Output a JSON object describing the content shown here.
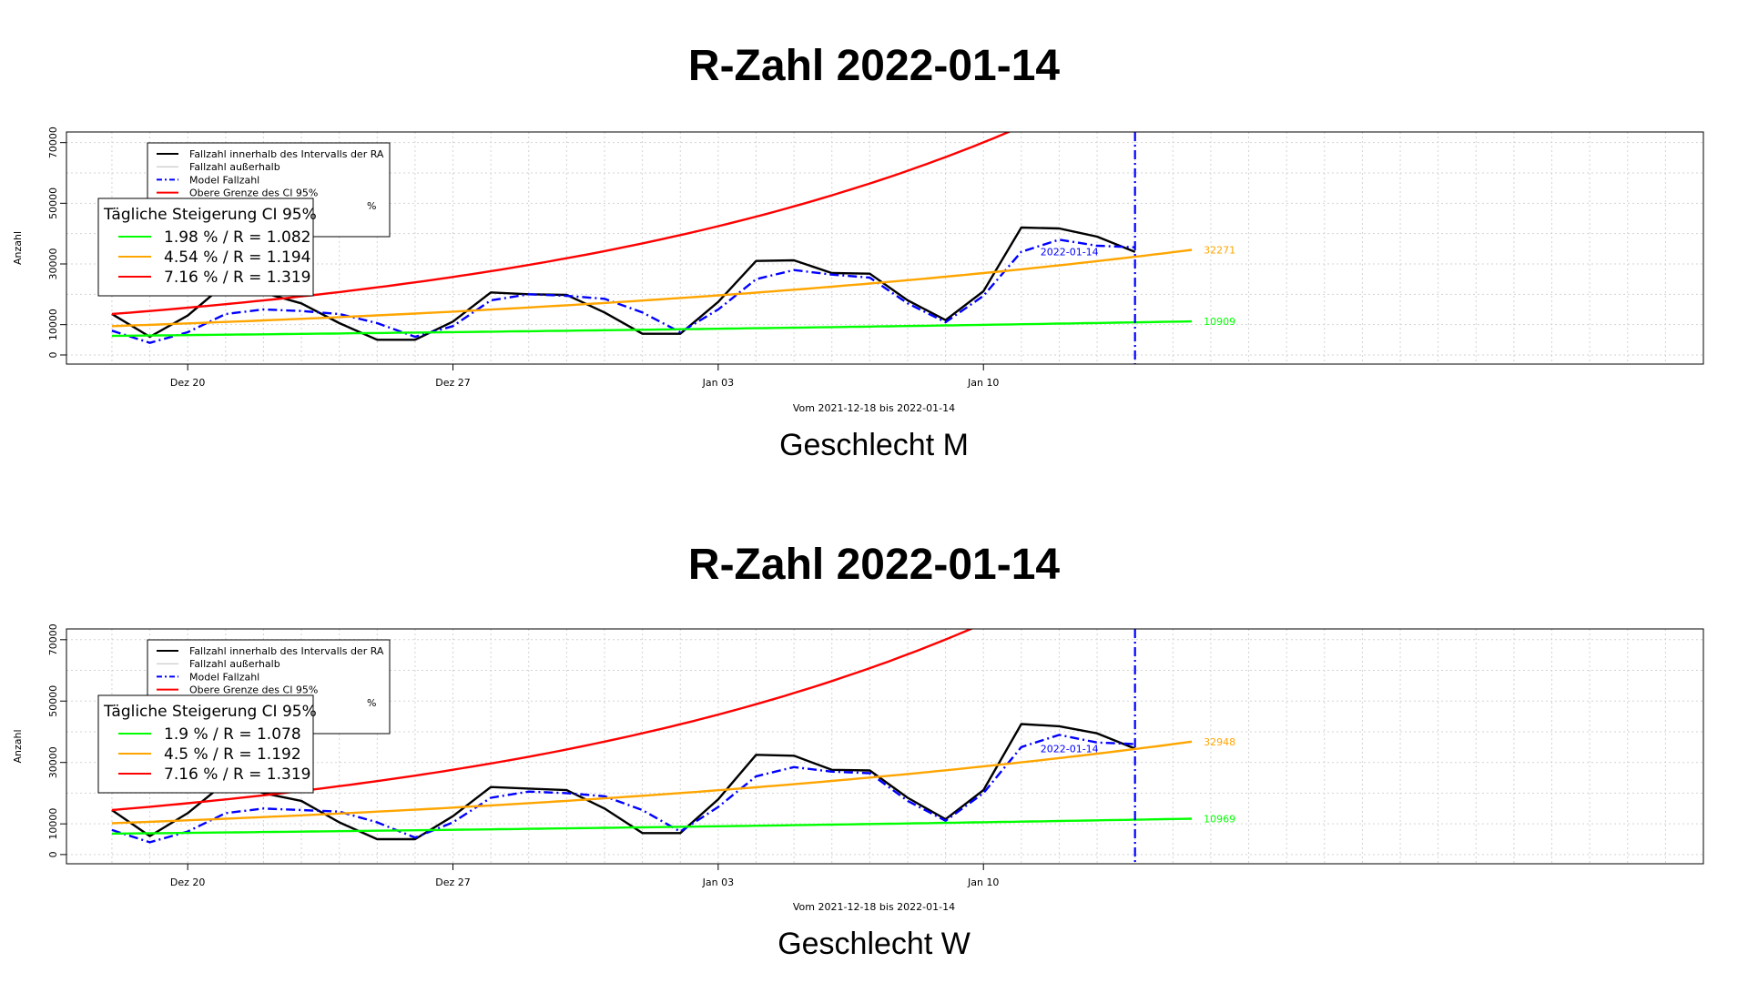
{
  "colors": {
    "black": "#000000",
    "gray": "#bebebe",
    "blue": "#0000ff",
    "red": "#ff0000",
    "orange": "#ffa500",
    "green": "#00ff00",
    "grid": "#d3d3d3"
  },
  "chart_data": [
    {
      "type": "line",
      "title": "R-Zahl 2022-01-14",
      "subtitle": "Geschlecht M",
      "xlabel": "Vom 2021-12-18 bis 2022-01-14",
      "ylabel": "Anzahl",
      "xlim": [
        -3.2,
        40.0
      ],
      "ylim": [
        -3000,
        73500
      ],
      "x_ticks": [
        0,
        7,
        14,
        21
      ],
      "x_tick_labels": [
        "Dez 20",
        "Dez 27",
        "Jan 03",
        "Jan 10"
      ],
      "y_ticks": [
        0,
        10000,
        30000,
        50000,
        70000
      ],
      "y_tick_labels": [
        "0",
        "10000",
        "30000",
        "50000",
        "70000"
      ],
      "y_grid": [
        0,
        10000,
        20000,
        30000,
        40000,
        50000,
        60000,
        70000
      ],
      "grid": true,
      "vline": {
        "x": 25,
        "label": "2022-01-14"
      },
      "series": [
        {
          "name": "Fallzahl innerhalb des Intervalls der RA",
          "style": "solid",
          "color": "black",
          "x": [
            -2,
            -1,
            0,
            1,
            2,
            3,
            4,
            5,
            6,
            7,
            8,
            9,
            10,
            11,
            12,
            13,
            14,
            15,
            16,
            17,
            18,
            19,
            20,
            21,
            22,
            23,
            24,
            25
          ],
          "values": [
            13500,
            6000,
            13000,
            23500,
            20500,
            17000,
            10500,
            5000,
            5000,
            11000,
            20600,
            20000,
            19800,
            14000,
            7000,
            7000,
            17500,
            31000,
            31200,
            27000,
            26800,
            18000,
            11500,
            21000,
            42000,
            41700,
            39000,
            34000
          ]
        },
        {
          "name": "Model Fallzahl",
          "style": "dashdot",
          "color": "blue",
          "x": [
            -2,
            -1,
            0,
            1,
            2,
            3,
            4,
            5,
            6,
            7,
            8,
            9,
            10,
            11,
            12,
            13,
            14,
            15,
            16,
            17,
            18,
            19,
            20,
            21,
            22,
            23,
            24,
            25
          ],
          "values": [
            8000,
            4000,
            7500,
            13500,
            15000,
            14500,
            13500,
            10500,
            6000,
            9500,
            18000,
            20000,
            19500,
            18500,
            14000,
            7500,
            15000,
            25000,
            28000,
            26500,
            25500,
            17000,
            10800,
            19500,
            34000,
            38000,
            36000,
            35500
          ]
        },
        {
          "name": "Obere Grenze des CI 95%",
          "style": "solid",
          "color": "red",
          "exp": {
            "y0": 13500,
            "rate": 0.0716,
            "x0": -2,
            "x1": 40
          }
        },
        {
          "name": "4.54 % / R = 1.194",
          "style": "solid",
          "color": "orange",
          "exp": {
            "y0": 9500,
            "rate": 0.0454,
            "x0": -2,
            "x1": 26.5
          },
          "end_label": "32271"
        },
        {
          "name": "1.98 % / R = 1.082",
          "style": "solid",
          "color": "green",
          "exp": {
            "y0": 6300,
            "rate": 0.0198,
            "x0": -2,
            "x1": 26.5
          },
          "end_label": "10909"
        }
      ],
      "legend_main": {
        "placement": "top-left",
        "entries": [
          {
            "label": "Fallzahl innerhalb des Intervalls der RA",
            "color": "black",
            "style": "solid"
          },
          {
            "label": "Fallzahl außerhalb",
            "color": "gray",
            "style": "solid"
          },
          {
            "label": "Model Fallzahl",
            "color": "blue",
            "style": "dashdot"
          },
          {
            "label": "Obere Grenze des CI 95%",
            "color": "red",
            "style": "solid"
          },
          {
            "label": "%",
            "color": "none",
            "style": "none"
          }
        ]
      },
      "legend_ci": {
        "title": "Tägliche Steigerung CI  95%",
        "entries": [
          {
            "label": "1.98 % / R = 1.082",
            "color": "green"
          },
          {
            "label": "4.54 % / R = 1.194",
            "color": "orange"
          },
          {
            "label": "7.16 % / R = 1.319",
            "color": "red"
          }
        ]
      }
    },
    {
      "type": "line",
      "title": "R-Zahl 2022-01-14",
      "subtitle": "Geschlecht W",
      "xlabel": "Vom 2021-12-18 bis 2022-01-14",
      "ylabel": "Anzahl",
      "xlim": [
        -3.2,
        40.0
      ],
      "ylim": [
        -3000,
        73500
      ],
      "x_ticks": [
        0,
        7,
        14,
        21
      ],
      "x_tick_labels": [
        "Dez 20",
        "Dez 27",
        "Jan 03",
        "Jan 10"
      ],
      "y_ticks": [
        0,
        10000,
        30000,
        50000,
        70000
      ],
      "y_tick_labels": [
        "0",
        "10000",
        "30000",
        "50000",
        "70000"
      ],
      "y_grid": [
        0,
        10000,
        20000,
        30000,
        40000,
        50000,
        60000,
        70000
      ],
      "grid": true,
      "vline": {
        "x": 25,
        "label": "2022-01-14"
      },
      "series": [
        {
          "name": "Fallzahl innerhalb des Intervalls der RA",
          "style": "solid",
          "color": "black",
          "x": [
            -2,
            -1,
            0,
            1,
            2,
            3,
            4,
            5,
            6,
            7,
            8,
            9,
            10,
            11,
            12,
            13,
            14,
            15,
            16,
            17,
            18,
            19,
            20,
            21,
            22,
            23,
            24,
            25
          ],
          "values": [
            14500,
            6000,
            13500,
            23500,
            20000,
            17500,
            10500,
            5000,
            5000,
            12500,
            22000,
            21500,
            21000,
            15000,
            7000,
            7000,
            18000,
            32500,
            32200,
            27600,
            27400,
            18500,
            11500,
            21000,
            42500,
            41800,
            39500,
            34500
          ]
        },
        {
          "name": "Model Fallzahl",
          "style": "dashdot",
          "color": "blue",
          "x": [
            -2,
            -1,
            0,
            1,
            2,
            3,
            4,
            5,
            6,
            7,
            8,
            9,
            10,
            11,
            12,
            13,
            14,
            15,
            16,
            17,
            18,
            19,
            20,
            21,
            22,
            23,
            24,
            25
          ],
          "values": [
            8000,
            4000,
            7500,
            13500,
            15000,
            14500,
            14000,
            10500,
            5500,
            10500,
            18500,
            20500,
            20000,
            19000,
            14500,
            7500,
            15500,
            25500,
            28500,
            27000,
            26500,
            17500,
            11000,
            20000,
            35000,
            39000,
            36500,
            36000
          ]
        },
        {
          "name": "Obere Grenze des CI 95%",
          "style": "solid",
          "color": "red",
          "exp": {
            "y0": 14500,
            "rate": 0.0716,
            "x0": -2,
            "x1": 40
          }
        },
        {
          "name": "4.5 % / R = 1.192",
          "style": "solid",
          "color": "orange",
          "exp": {
            "y0": 10200,
            "rate": 0.045,
            "x0": -2,
            "x1": 26.5
          },
          "end_label": "32948"
        },
        {
          "name": "1.9 % / R = 1.078",
          "style": "solid",
          "color": "green",
          "exp": {
            "y0": 6800,
            "rate": 0.019,
            "x0": -2,
            "x1": 26.5
          },
          "end_label": "10969"
        }
      ],
      "legend_main": {
        "placement": "top-left",
        "entries": [
          {
            "label": "Fallzahl innerhalb des Intervalls der RA",
            "color": "black",
            "style": "solid"
          },
          {
            "label": "Fallzahl außerhalb",
            "color": "gray",
            "style": "solid"
          },
          {
            "label": "Model Fallzahl",
            "color": "blue",
            "style": "dashdot"
          },
          {
            "label": "Obere Grenze des CI 95%",
            "color": "red",
            "style": "solid"
          },
          {
            "label": "%",
            "color": "none",
            "style": "none"
          }
        ]
      },
      "legend_ci": {
        "title": "Tägliche Steigerung CI  95%",
        "entries": [
          {
            "label": "1.9 % / R = 1.078",
            "color": "green"
          },
          {
            "label": "4.5 % / R = 1.192",
            "color": "orange"
          },
          {
            "label": "7.16 % / R = 1.319",
            "color": "red"
          }
        ]
      }
    }
  ]
}
